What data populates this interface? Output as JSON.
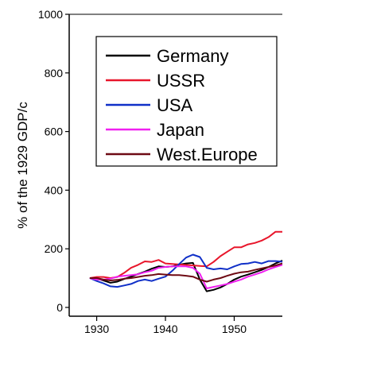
{
  "chart_data": {
    "type": "line",
    "title": "",
    "xlabel": "",
    "ylabel": "% of the 1929 GDP/c",
    "xlim": [
      1926,
      1957
    ],
    "ylim": [
      -30,
      1000
    ],
    "x_ticks": [
      1930,
      1940,
      1950
    ],
    "x_tick_labels": [
      "1930",
      "1940",
      "1950"
    ],
    "y_ticks": [
      0,
      200,
      400,
      600,
      800,
      1000
    ],
    "y_tick_labels": [
      "0",
      "200",
      "400",
      "600",
      "800",
      "1000"
    ],
    "grid": false,
    "legend_position": "top-right",
    "series": [
      {
        "name": "Germany",
        "color": "#000000",
        "points": [
          [
            1929,
            100
          ],
          [
            1930,
            98
          ],
          [
            1931,
            92
          ],
          [
            1932,
            84
          ],
          [
            1933,
            88
          ],
          [
            1934,
            97
          ],
          [
            1935,
            105
          ],
          [
            1936,
            114
          ],
          [
            1937,
            122
          ],
          [
            1938,
            132
          ],
          [
            1939,
            140
          ],
          [
            1940,
            138
          ],
          [
            1941,
            140
          ],
          [
            1942,
            146
          ],
          [
            1943,
            150
          ],
          [
            1944,
            152
          ],
          [
            1945,
            95
          ],
          [
            1946,
            55
          ],
          [
            1947,
            60
          ],
          [
            1948,
            68
          ],
          [
            1949,
            80
          ],
          [
            1950,
            95
          ],
          [
            1951,
            105
          ],
          [
            1952,
            112
          ],
          [
            1953,
            120
          ],
          [
            1954,
            128
          ],
          [
            1955,
            138
          ],
          [
            1956,
            150
          ],
          [
            1957,
            160
          ]
        ]
      },
      {
        "name": "USSR",
        "color": "#e8162b",
        "points": [
          [
            1929,
            100
          ],
          [
            1930,
            104
          ],
          [
            1931,
            104
          ],
          [
            1932,
            100
          ],
          [
            1933,
            104
          ],
          [
            1934,
            118
          ],
          [
            1935,
            135
          ],
          [
            1936,
            145
          ],
          [
            1937,
            157
          ],
          [
            1938,
            155
          ],
          [
            1939,
            162
          ],
          [
            1940,
            150
          ],
          [
            1946,
            140
          ],
          [
            1947,
            155
          ],
          [
            1948,
            175
          ],
          [
            1949,
            190
          ],
          [
            1950,
            205
          ],
          [
            1951,
            205
          ],
          [
            1952,
            215
          ],
          [
            1953,
            220
          ],
          [
            1954,
            228
          ],
          [
            1955,
            240
          ],
          [
            1956,
            258
          ],
          [
            1957,
            258
          ]
        ]
      },
      {
        "name": "USA",
        "color": "#1030c8",
        "points": [
          [
            1929,
            100
          ],
          [
            1930,
            90
          ],
          [
            1931,
            82
          ],
          [
            1932,
            72
          ],
          [
            1933,
            70
          ],
          [
            1934,
            75
          ],
          [
            1935,
            80
          ],
          [
            1936,
            90
          ],
          [
            1937,
            95
          ],
          [
            1938,
            90
          ],
          [
            1939,
            98
          ],
          [
            1940,
            105
          ],
          [
            1941,
            125
          ],
          [
            1942,
            148
          ],
          [
            1943,
            170
          ],
          [
            1944,
            180
          ],
          [
            1945,
            172
          ],
          [
            1946,
            135
          ],
          [
            1947,
            130
          ],
          [
            1948,
            133
          ],
          [
            1949,
            130
          ],
          [
            1950,
            140
          ],
          [
            1951,
            148
          ],
          [
            1952,
            150
          ],
          [
            1953,
            155
          ],
          [
            1954,
            150
          ],
          [
            1955,
            158
          ],
          [
            1956,
            158
          ],
          [
            1957,
            156
          ]
        ]
      },
      {
        "name": "Japan",
        "color": "#f020f0",
        "points": [
          [
            1929,
            100
          ],
          [
            1930,
            95
          ],
          [
            1931,
            95
          ],
          [
            1932,
            98
          ],
          [
            1933,
            105
          ],
          [
            1934,
            108
          ],
          [
            1935,
            110
          ],
          [
            1936,
            113
          ],
          [
            1937,
            120
          ],
          [
            1938,
            125
          ],
          [
            1939,
            135
          ],
          [
            1940,
            138
          ],
          [
            1941,
            140
          ],
          [
            1942,
            140
          ],
          [
            1943,
            140
          ],
          [
            1944,
            135
          ],
          [
            1945,
            115
          ],
          [
            1946,
            65
          ],
          [
            1947,
            70
          ],
          [
            1948,
            75
          ],
          [
            1949,
            80
          ],
          [
            1950,
            88
          ],
          [
            1951,
            95
          ],
          [
            1952,
            105
          ],
          [
            1953,
            112
          ],
          [
            1954,
            120
          ],
          [
            1955,
            130
          ],
          [
            1956,
            138
          ],
          [
            1957,
            145
          ]
        ]
      },
      {
        "name": "West.Europe",
        "color": "#6e0a14",
        "points": [
          [
            1929,
            100
          ],
          [
            1930,
            100
          ],
          [
            1931,
            95
          ],
          [
            1932,
            92
          ],
          [
            1933,
            94
          ],
          [
            1934,
            98
          ],
          [
            1935,
            100
          ],
          [
            1936,
            104
          ],
          [
            1937,
            108
          ],
          [
            1938,
            110
          ],
          [
            1939,
            114
          ],
          [
            1940,
            112
          ],
          [
            1941,
            110
          ],
          [
            1942,
            110
          ],
          [
            1943,
            108
          ],
          [
            1944,
            105
          ],
          [
            1945,
            95
          ],
          [
            1946,
            88
          ],
          [
            1947,
            95
          ],
          [
            1948,
            100
          ],
          [
            1949,
            108
          ],
          [
            1950,
            115
          ],
          [
            1951,
            120
          ],
          [
            1952,
            122
          ],
          [
            1953,
            128
          ],
          [
            1954,
            133
          ],
          [
            1955,
            138
          ],
          [
            1956,
            143
          ],
          [
            1957,
            150
          ]
        ]
      }
    ]
  }
}
